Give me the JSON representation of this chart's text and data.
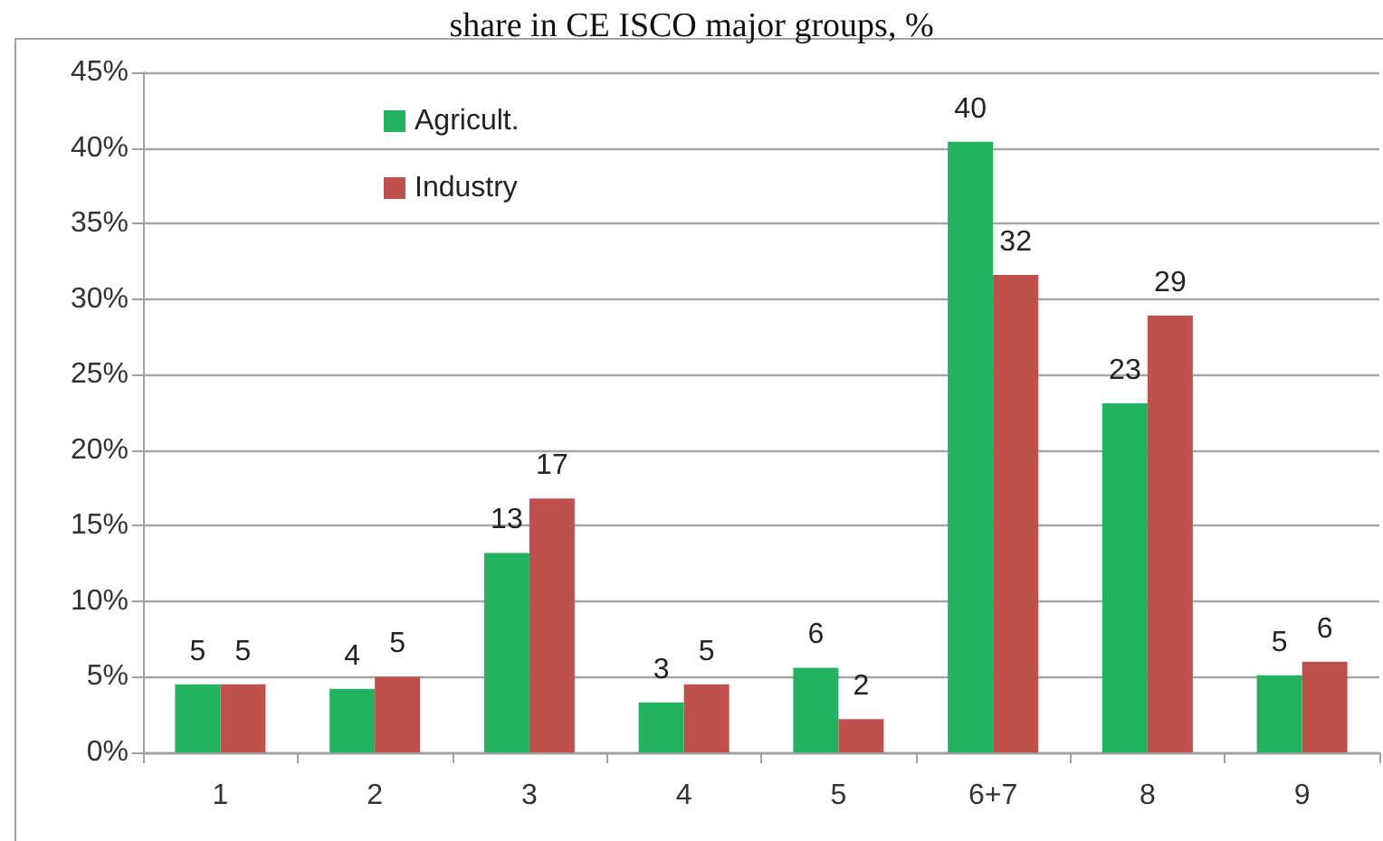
{
  "chart_data": {
    "type": "bar",
    "title": "share in CE ISCO major groups, %",
    "categories": [
      "1",
      "2",
      "3",
      "4",
      "5",
      "6+7",
      "8",
      "9"
    ],
    "series": [
      {
        "name": "Agricult.",
        "color": "#21b35f",
        "values": [
          4.5,
          4.2,
          13.2,
          3.3,
          5.6,
          40.4,
          23.1,
          5.1
        ],
        "value_labels": [
          "5",
          "4",
          "13",
          "3",
          "6",
          "40",
          "23",
          "5"
        ]
      },
      {
        "name": "Industry",
        "color": "#c0504d",
        "values": [
          4.5,
          5.0,
          16.8,
          4.5,
          2.2,
          31.6,
          28.9,
          6.0
        ],
        "value_labels": [
          "5",
          "5",
          "17",
          "5",
          "2",
          "32",
          "29",
          "6"
        ]
      }
    ],
    "ylim": [
      0,
      45
    ],
    "yticks": [
      {
        "value": 0,
        "label": "0%"
      },
      {
        "value": 5,
        "label": "5%"
      },
      {
        "value": 10,
        "label": "10%"
      },
      {
        "value": 15,
        "label": "15%"
      },
      {
        "value": 20,
        "label": "20%"
      },
      {
        "value": 25,
        "label": "25%"
      },
      {
        "value": 30,
        "label": "30%"
      },
      {
        "value": 35,
        "label": "35%"
      },
      {
        "value": 40,
        "label": "40%"
      },
      {
        "value": 45,
        "label": "45%"
      }
    ],
    "grid": "y",
    "legend": "top left"
  }
}
